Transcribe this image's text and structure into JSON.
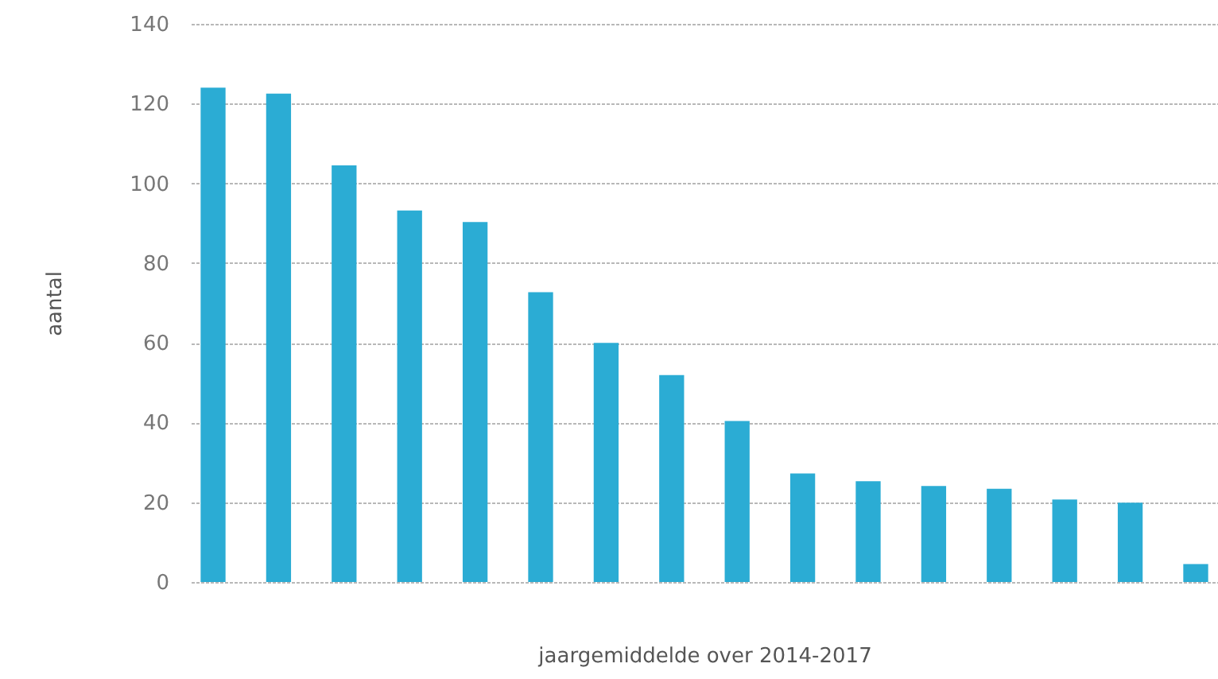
{
  "chart_data": {
    "type": "bar",
    "xlabel": "jaargemiddelde over 2014-2017",
    "ylabel": "aantal",
    "categories": [
      null,
      null,
      null,
      null,
      null,
      null,
      null,
      null,
      null,
      null,
      null,
      null,
      null,
      null,
      null,
      null
    ],
    "values": [
      124,
      122.5,
      104.5,
      93.2,
      90.3,
      72.7,
      60,
      51.9,
      40.4,
      27.2,
      25.3,
      24.1,
      23.4,
      20.7,
      19.9,
      4.5
    ],
    "color": "#2bacd4",
    "ylim": [
      0,
      140
    ],
    "yticks": [
      0,
      20,
      40,
      60,
      80,
      100,
      120,
      140
    ],
    "grid": "y"
  }
}
